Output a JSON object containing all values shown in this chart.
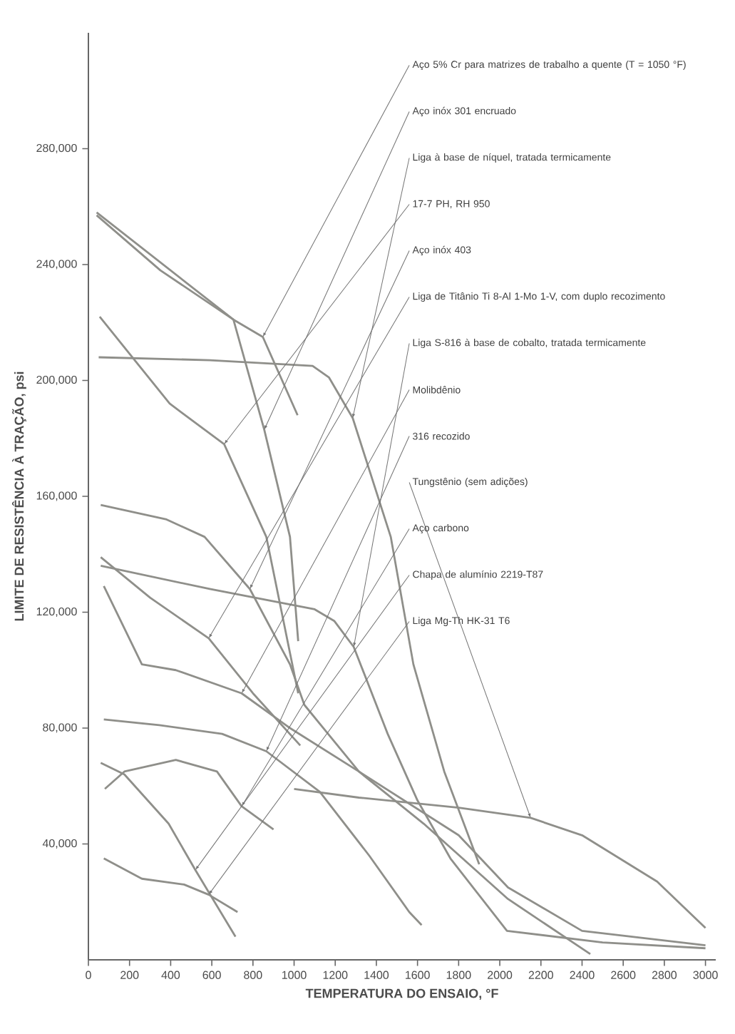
{
  "chart_data": {
    "type": "line",
    "xlabel": "TEMPERATURA DO ENSAIO, °F",
    "ylabel": "LIMITE DE RESISTÊNCIA À TRAÇÃO, psi",
    "xlim": [
      0,
      3050
    ],
    "ylim": [
      0,
      320000
    ],
    "xticks": [
      0,
      200,
      400,
      600,
      800,
      1000,
      1200,
      1400,
      1600,
      1800,
      2000,
      2200,
      2400,
      2600,
      2800,
      3000
    ],
    "yticks": [
      {
        "value": 40000,
        "label": "40,000"
      },
      {
        "value": 80000,
        "label": "80,000"
      },
      {
        "value": 120000,
        "label": "120,000"
      },
      {
        "value": 160000,
        "label": "160,000"
      },
      {
        "value": 200000,
        "label": "200,000"
      },
      {
        "value": 240000,
        "label": "240,000"
      },
      {
        "value": 280000,
        "label": "280,000"
      }
    ],
    "series": [
      {
        "name": "Liga de Titânio Ti 8-Al 1-Mo 1-V, com duplo recozimento",
        "color": "#8f8f8a",
        "x": [
          60,
          300,
          585,
          800,
          1030
        ],
        "values": [
          139000,
          125000,
          111000,
          92000,
          74000
        ]
      },
      {
        "name": "Aço 5% Cr para matrizes de trabalho a quente (T = 1050 °F)",
        "color": "#8f8f8a",
        "x": [
          40,
          350,
          705,
          848,
          1017
        ],
        "values": [
          257000,
          238000,
          221000,
          215000,
          188000
        ]
      },
      {
        "name": "Liga à base de níquel, tratada termicamente",
        "color": "#8f8f8a",
        "x": [
          50,
          590,
          1090,
          1170,
          1285,
          1470,
          1580,
          1730,
          1900
        ],
        "values": [
          208000,
          207000,
          205000,
          201000,
          187000,
          146000,
          102000,
          65000,
          33000
        ]
      },
      {
        "name": "17-7 PH, RH 950",
        "color": "#8f8f8a",
        "x": [
          55,
          395,
          660,
          865,
          1020
        ],
        "values": [
          222000,
          192000,
          178000,
          146000,
          92000
        ]
      },
      {
        "name": "Aço inóx 403",
        "color": "#8f8f8a",
        "x": [
          60,
          380,
          565,
          785,
          980,
          1050,
          1315,
          1630,
          2040,
          2440
        ],
        "values": [
          157000,
          152000,
          146000,
          128000,
          102000,
          88000,
          65000,
          47000,
          21000,
          2000
        ]
      },
      {
        "name": "Aço inóx 301 encruado",
        "color": "#8f8f8a",
        "x": [
          40,
          705,
          855,
          980,
          1020
        ],
        "values": [
          258000,
          221000,
          183000,
          146000,
          110000
        ]
      },
      {
        "name": "Liga S-816 à base de cobalto, tratada termicamente",
        "color": "#8f8f8a",
        "x": [
          60,
          590,
          1100,
          1195,
          1290,
          1455,
          1600,
          1760,
          2035,
          2500,
          3000
        ],
        "values": [
          136000,
          128000,
          121000,
          117000,
          108000,
          78000,
          55000,
          35000,
          10000,
          6000,
          4000
        ]
      },
      {
        "name": "Molibdênio",
        "color": "#8f8f8a",
        "x": [
          75,
          260,
          425,
          745,
          980,
          1315,
          1800,
          2040,
          2400,
          3000
        ],
        "values": [
          129000,
          102000,
          100000,
          92000,
          80000,
          65000,
          43000,
          25000,
          10000,
          5000
        ]
      },
      {
        "name": "316 recozido",
        "color": "#8f8f8a",
        "x": [
          75,
          345,
          650,
          865,
          1125,
          1365,
          1560,
          1620
        ],
        "values": [
          83000,
          81000,
          78000,
          72000,
          58000,
          36000,
          16500,
          12000
        ]
      },
      {
        "name": "Aço carbono",
        "color": "#8f8f8a",
        "x": [
          80,
          175,
          425,
          625,
          745,
          900
        ],
        "values": [
          59000,
          65000,
          69000,
          65000,
          53000,
          45000
        ]
      },
      {
        "name": "Chapa de alumínio 2219-T87",
        "color": "#8f8f8a",
        "x": [
          60,
          175,
          390,
          520,
          715
        ],
        "values": [
          68000,
          64000,
          47000,
          31000,
          8000
        ]
      },
      {
        "name": "Liga Mg-Th HK-31 T6",
        "color": "#8f8f8a",
        "x": [
          75,
          260,
          465,
          585,
          725
        ],
        "values": [
          35000,
          28000,
          26000,
          22500,
          16500
        ]
      },
      {
        "name": "Tungstênio (sem adições)",
        "color": "#8f8f8a",
        "x": [
          1000,
          1315,
          1800,
          2150,
          2400,
          2765,
          3000
        ],
        "values": [
          59000,
          56000,
          52500,
          49000,
          43000,
          27000,
          11000
        ]
      }
    ]
  }
}
